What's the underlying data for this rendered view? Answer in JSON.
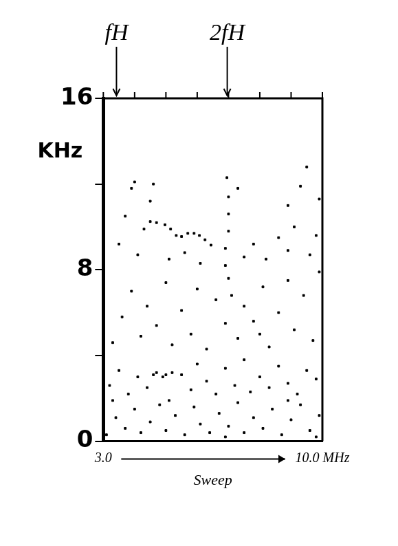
{
  "chart_data": {
    "type": "scatter",
    "x": [
      3.1,
      3.4,
      3.7,
      4.0,
      4.2,
      4.5,
      4.8,
      5.0,
      5.3,
      5.6,
      5.9,
      6.1,
      6.4,
      6.7,
      7.0,
      7.3,
      7.5,
      7.8,
      8.1,
      8.4,
      8.7,
      9.0,
      9.3,
      9.6,
      9.9,
      3.3,
      5.1,
      6.9,
      8.9,
      9.8,
      3.2,
      3.5,
      3.8,
      4.1,
      4.4,
      4.7,
      5.0,
      5.2,
      5.5,
      5.8,
      6.0,
      6.3,
      6.6,
      6.9,
      7.2,
      7.5,
      7.7,
      8.0,
      8.3,
      8.6,
      8.9,
      9.2,
      9.5,
      9.8,
      4.9,
      4.6,
      3.3,
      3.6,
      3.9,
      4.2,
      4.4,
      4.7,
      5.0,
      5.2,
      5.5,
      5.8,
      6.0,
      6.3,
      6.6,
      6.9,
      7.0,
      7.3,
      7.5,
      7.8,
      8.1,
      8.3,
      8.6,
      8.9,
      9.1,
      9.4,
      9.7,
      9.9,
      8.0,
      7.1,
      3.5,
      3.7,
      3.9,
      4.1,
      4.3,
      4.5,
      4.5,
      4.97,
      5.33,
      5.7,
      6.07,
      6.44,
      5.1,
      5.6,
      6.1,
      6.9,
      6.9,
      7.0,
      7.0,
      7.0,
      6.95,
      7.3,
      7.5,
      7.8,
      8.2,
      8.6,
      8.9,
      8.9,
      9.1,
      9.3,
      9.5,
      9.6,
      9.8,
      9.9,
      4.0,
      4.6,
      4.7,
      5.15,
      5.5,
      5.9,
      6.25
    ],
    "values": [
      0.3,
      1.1,
      0.6,
      1.5,
      0.4,
      0.9,
      1.7,
      0.5,
      1.2,
      0.3,
      1.6,
      0.8,
      0.4,
      1.3,
      0.7,
      1.8,
      0.4,
      1.1,
      0.6,
      1.5,
      0.3,
      1.0,
      1.7,
      0.5,
      1.2,
      1.9,
      1.9,
      0.2,
      1.9,
      0.2,
      2.6,
      3.3,
      2.2,
      3.0,
      2.5,
      3.2,
      3.1,
      3.2,
      3.1,
      2.4,
      3.6,
      2.8,
      2.2,
      3.4,
      2.6,
      3.8,
      2.3,
      3.0,
      2.5,
      3.5,
      2.7,
      2.2,
      3.3,
      2.9,
      3.0,
      3.1,
      4.6,
      5.8,
      7.0,
      4.9,
      6.3,
      5.4,
      7.4,
      4.5,
      6.1,
      5.0,
      7.1,
      4.3,
      6.6,
      5.5,
      7.6,
      4.8,
      6.3,
      5.6,
      7.2,
      4.4,
      6.0,
      7.5,
      5.2,
      6.8,
      4.7,
      7.9,
      5.0,
      6.8,
      9.2,
      10.5,
      11.8,
      8.7,
      9.9,
      11.2,
      10.25,
      10.1,
      9.6,
      9.7,
      9.6,
      9.15,
      8.5,
      8.8,
      8.3,
      8.2,
      9.0,
      9.8,
      10.6,
      11.4,
      12.3,
      11.8,
      8.6,
      9.2,
      8.5,
      9.5,
      8.9,
      11.0,
      10.0,
      11.9,
      12.8,
      8.7,
      9.6,
      11.3,
      12.1,
      12.0,
      10.2,
      9.9,
      9.55,
      9.7,
      9.4
    ],
    "color": "#000000",
    "marker": "square",
    "xlim": [
      3,
      10
    ],
    "xticks": [
      {
        "value": 3,
        "label": "3.0"
      },
      {
        "value": 10,
        "label": "10.0 MHz"
      }
    ],
    "x_minor_ticks": [
      4,
      5,
      6,
      7,
      8,
      9
    ],
    "ylim": [
      0,
      16
    ],
    "yticks": [
      0,
      8,
      16
    ],
    "y_minor_ticks": [
      4,
      12
    ],
    "x_label": "Sweep",
    "y_label": "KHz",
    "annotations": [
      {
        "text": "fH",
        "x": 3.42
      },
      {
        "text": "2fH",
        "x": 6.96
      }
    ],
    "grid": false
  }
}
